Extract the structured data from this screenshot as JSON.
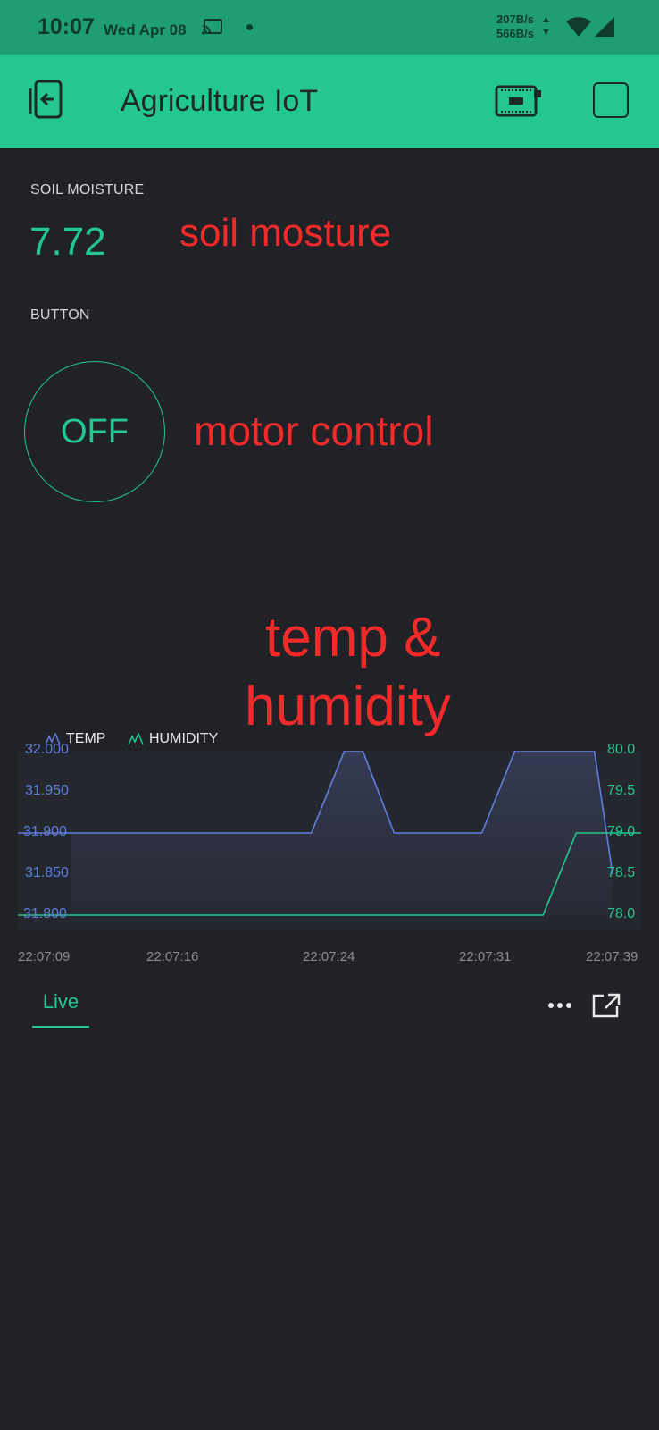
{
  "status_bar": {
    "time": "10:07",
    "date": "Wed Apr 08",
    "speed_up": "207B/s",
    "speed_down": "566B/s",
    "icons": [
      "cast-icon",
      "dot-indicator",
      "data-arrows-icon",
      "wifi-icon",
      "signal-icon"
    ]
  },
  "app_bar": {
    "title": "Agriculture IoT",
    "icons": [
      "back-exit-icon",
      "device-board-icon",
      "stop-square-icon"
    ],
    "color": "#23c78f"
  },
  "widgets": {
    "soil": {
      "label": "SOIL MOISTURE",
      "value": "7.72"
    },
    "button": {
      "label": "BUTTON",
      "state": "OFF"
    }
  },
  "annotations": {
    "soil": "soil mosture",
    "motor": "motor control",
    "chart_line1": "temp &",
    "chart_line2": "humidity"
  },
  "chart_data": {
    "type": "line",
    "title": "",
    "x_ticks": [
      "22:07:09",
      "22:07:16",
      "22:07:24",
      "22:07:31",
      "22:07:39"
    ],
    "y_left_ticks": [
      "32.000",
      "31.950",
      "31.900",
      "31.850",
      "31.800"
    ],
    "y_right_ticks": [
      "80.0",
      "79.5",
      "79.0",
      "78.5",
      "78.0"
    ],
    "y_left_range": [
      31.8,
      32.0
    ],
    "y_right_range": [
      78.0,
      80.0
    ],
    "series": [
      {
        "name": "TEMP",
        "axis": "left",
        "color": "#5f7fe0",
        "points": [
          [
            0,
            31.9
          ],
          [
            14.5,
            31.9
          ],
          [
            16.5,
            32.0
          ],
          [
            17.6,
            32.0
          ],
          [
            19.5,
            31.9
          ],
          [
            24.8,
            31.9
          ],
          [
            26.8,
            32.0
          ],
          [
            31.6,
            32.0
          ],
          [
            32.7,
            31.85
          ]
        ]
      },
      {
        "name": "HUMIDITY",
        "axis": "right",
        "color": "#23c78f",
        "points": [
          [
            0,
            78.0
          ],
          [
            28.5,
            78.0
          ],
          [
            30.5,
            79.0
          ],
          [
            32.7,
            79.0
          ]
        ]
      }
    ],
    "x_range": [
      0,
      32.7
    ],
    "grid": false,
    "legend": "top-left"
  },
  "footer": {
    "tab_label": "Live",
    "icons": [
      "more-dots-icon",
      "expand-icon"
    ]
  }
}
